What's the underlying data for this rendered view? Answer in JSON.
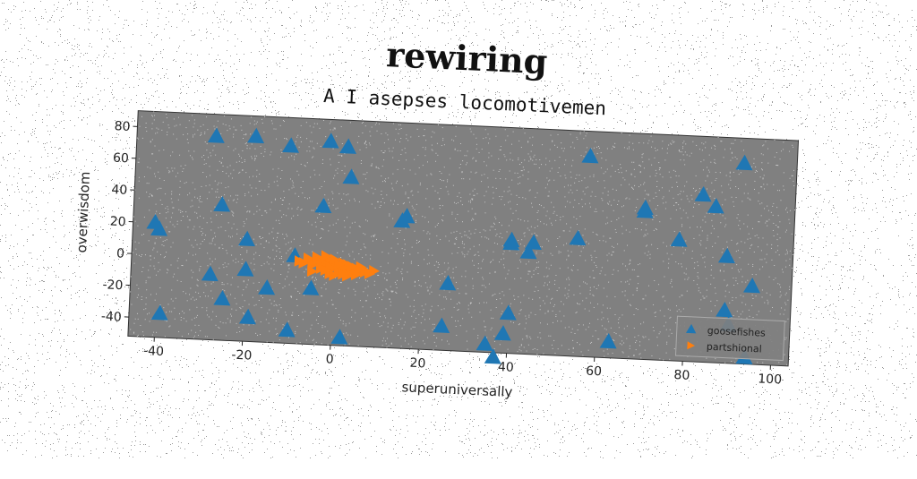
{
  "chart_data": {
    "type": "scatter",
    "title": "rewiring",
    "subtitle": "A I asepses locomotivemen",
    "xlabel": "superuniversally",
    "ylabel": "overwisdom",
    "xlim": [
      -46,
      104
    ],
    "ylim": [
      -52,
      90
    ],
    "xticks": [
      -40,
      -20,
      0,
      20,
      40,
      60,
      80,
      100
    ],
    "yticks": [
      -40,
      -20,
      0,
      20,
      40,
      60,
      80
    ],
    "grid": false,
    "legend_position": "bottom-right",
    "plot_background": "#808080",
    "series": [
      {
        "name": "goosefishes",
        "marker": "triangle-up",
        "color": "#1f77b4",
        "x": [
          -28,
          -19,
          -11,
          -2,
          2,
          -26,
          -3,
          3,
          -20,
          -41,
          -40,
          -9,
          -20,
          -28,
          -25,
          -15,
          -19,
          -5,
          -39,
          -10,
          2,
          16,
          15,
          26,
          25,
          35,
          39,
          40,
          40,
          45,
          44,
          57,
          55,
          63,
          37,
          70,
          70,
          78,
          83,
          86,
          89,
          89,
          90,
          92,
          95,
          94,
          40
        ],
        "y": [
          76,
          77,
          72,
          76,
          73,
          33,
          35,
          54,
          12,
          20,
          16,
          3,
          -7,
          -11,
          -26,
          -18,
          -37,
          -17,
          -37,
          -44,
          -47,
          31,
          28,
          -10,
          -37,
          -47,
          -40,
          -27,
          19,
          18,
          12,
          74,
          22,
          -42,
          -55,
          43,
          41,
          24,
          53,
          46,
          15,
          -19,
          -28,
          74,
          -3,
          -48,
          17
        ]
      },
      {
        "name": "partshional",
        "marker": "triangle-right",
        "color": "#ff7f0e",
        "x": [
          -8,
          -6,
          -5,
          -4,
          -3,
          -2,
          -1,
          0,
          1,
          2,
          3,
          4,
          5,
          6,
          7,
          -7,
          -5,
          -3,
          -1,
          1,
          3,
          5,
          7,
          -6,
          -4,
          -2,
          0,
          2,
          4,
          6,
          -5,
          -3,
          -1,
          1,
          3,
          5,
          -4,
          -2,
          0,
          2,
          4,
          -3,
          -1,
          1,
          3,
          8,
          9,
          -2,
          0,
          2
        ],
        "y": [
          0,
          1,
          -2,
          2,
          -1,
          0,
          1,
          -3,
          -2,
          0,
          -1,
          -4,
          -3,
          -2,
          -5,
          -1,
          0,
          -3,
          -2,
          -4,
          -5,
          -6,
          -4,
          2,
          3,
          -1,
          0,
          -5,
          -6,
          -3,
          -6,
          -4,
          -7,
          -6,
          -8,
          -7,
          1,
          4,
          2,
          -3,
          -2,
          -2,
          -3,
          -1,
          -7,
          -6,
          -4,
          -5,
          -8,
          -7
        ]
      }
    ]
  }
}
